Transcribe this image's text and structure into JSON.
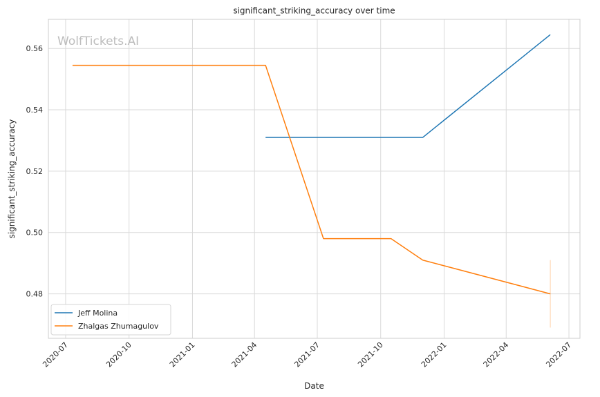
{
  "chart_data": {
    "type": "line",
    "title": "significant_striking_accuracy over time",
    "xlabel": "Date",
    "ylabel": "significant_striking_accuracy",
    "watermark": "WolfTickets.AI",
    "x_ticks": [
      "2020-07",
      "2020-10",
      "2021-01",
      "2021-04",
      "2021-07",
      "2021-10",
      "2022-01",
      "2022-04",
      "2022-07"
    ],
    "y_ticks": [
      "0.48",
      "0.50",
      "0.52",
      "0.54",
      "0.56"
    ],
    "xlim": [
      "2020-06-06",
      "2022-07-17"
    ],
    "ylim": [
      0.4655,
      0.5695
    ],
    "grid": true,
    "legend_position": "lower-left",
    "series": [
      {
        "name": "Jeff Molina",
        "color": "#1f77b4",
        "x": [
          "2021-04-17",
          "2021-12-01",
          "2022-06-04"
        ],
        "y": [
          0.531,
          0.531,
          0.5645
        ]
      },
      {
        "name": "Zhalgas Zhumagulov",
        "color": "#ff7f0e",
        "x": [
          "2020-07-11",
          "2021-04-17",
          "2021-07-10",
          "2021-10-16",
          "2021-12-01",
          "2022-06-04"
        ],
        "y": [
          0.5545,
          0.5545,
          0.498,
          0.498,
          0.491,
          0.48
        ],
        "error_bar": {
          "x": "2022-06-04",
          "low": 0.469,
          "high": 0.491
        }
      }
    ]
  }
}
